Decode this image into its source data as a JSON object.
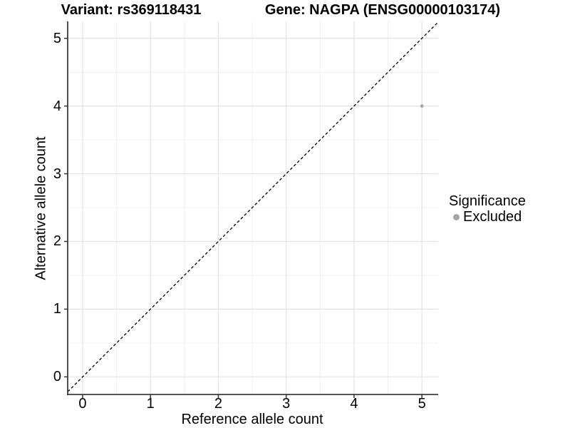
{
  "titles": {
    "left": "Variant: rs369118431",
    "right": "Gene: NAGPA (ENSG00000103174)"
  },
  "chart_data": {
    "type": "scatter",
    "title_left": "Variant: rs369118431",
    "title_right": "Gene: NAGPA (ENSG00000103174)",
    "xlabel": "Reference allele count",
    "ylabel": "Alternative allele count",
    "xlim": [
      -0.22,
      5.24
    ],
    "ylim": [
      -0.26,
      5.25
    ],
    "x_ticks": [
      0,
      1,
      2,
      3,
      4,
      5
    ],
    "y_ticks": [
      0,
      1,
      2,
      3,
      4,
      5
    ],
    "x_minor": [
      0.5,
      1.5,
      2.5,
      3.5,
      4.5
    ],
    "y_minor": [
      0.5,
      1.5,
      2.5,
      3.5,
      4.5
    ],
    "series": [
      {
        "name": "Excluded",
        "color": "#a6a6a6",
        "points": [
          {
            "x": 5,
            "y": 4
          }
        ],
        "point_radius": 2.4
      }
    ],
    "reference_line": {
      "description": "identity line y = x",
      "style": "dashed",
      "color": "#000000"
    },
    "grid": {
      "major_color": "#e3e3e3",
      "minor_color": "#f0f0f0"
    },
    "axis": {
      "line_color": "#3d3d3d",
      "tick_color": "#333333",
      "tick_length": 5
    },
    "legend": {
      "title": "Significance",
      "position": "right",
      "items": [
        {
          "label": "Excluded",
          "color": "#a6a6a6"
        }
      ]
    }
  }
}
